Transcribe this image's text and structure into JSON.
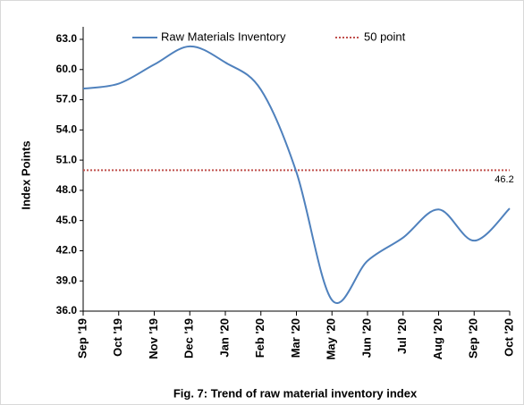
{
  "chart_data": {
    "type": "line",
    "caption": "Fig. 7: Trend of raw material inventory index",
    "y_label": "Index Points",
    "categories": [
      "Sep '19",
      "Oct '19",
      "Nov '19",
      "Dec '19",
      "Jan '20",
      "Feb '20",
      "Mar '20",
      "May '20",
      "Jun '20",
      "Jul '20",
      "Aug '20",
      "Sep '20",
      "Oct '20"
    ],
    "series": [
      {
        "name": "Raw Materials Inventory",
        "color": "#4f81bd",
        "values": [
          58.1,
          58.6,
          60.5,
          62.3,
          60.7,
          58.0,
          49.8,
          37.1,
          41.0,
          43.3,
          46.1,
          43.0,
          46.2
        ],
        "value_labels": [
          null,
          null,
          null,
          null,
          null,
          null,
          null,
          null,
          null,
          null,
          null,
          null,
          "46.2"
        ]
      }
    ],
    "reference_line": {
      "name": "50 point",
      "value": 50,
      "color": "#c0504d"
    },
    "ylim": [
      36,
      63
    ],
    "yticks": [
      {
        "value": 36,
        "label": "36.0"
      },
      {
        "value": 39,
        "label": "39.0"
      },
      {
        "value": 42,
        "label": "42.0"
      },
      {
        "value": 45,
        "label": "45.0"
      },
      {
        "value": 48,
        "label": "48.0"
      },
      {
        "value": 51,
        "label": "51.0"
      },
      {
        "value": 54,
        "label": "54.0"
      },
      {
        "value": 57,
        "label": "57.0"
      },
      {
        "value": 60,
        "label": "60.0"
      },
      {
        "value": 63,
        "label": "63.0"
      }
    ]
  }
}
